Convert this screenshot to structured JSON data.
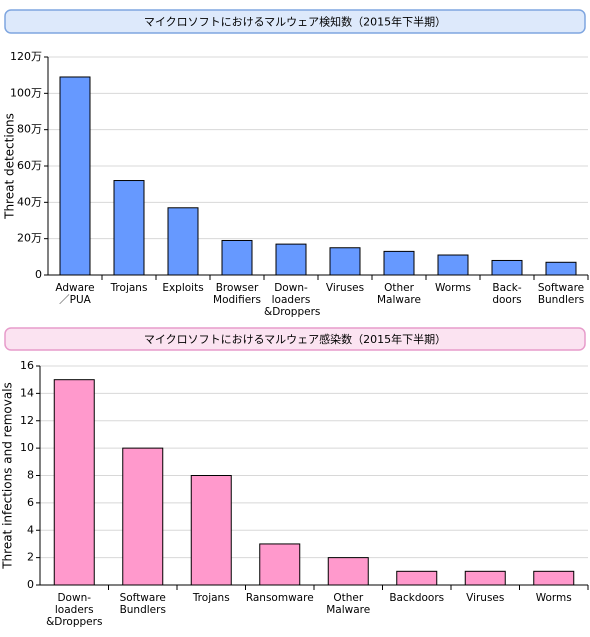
{
  "chart_data": [
    {
      "type": "bar",
      "title": "マイクロソフトにおけるマルウェア検知数（2015年下半期）",
      "y_label": "Threat detections",
      "categories": [
        "Adware\n／PUA",
        "Trojans",
        "Exploits",
        "Browser\nModifiers",
        "Down-\nloaders\n&Droppers",
        "Viruses",
        "Other\nMalware",
        "Worms",
        "Back-\ndoors",
        "Software\nBundlers"
      ],
      "values": [
        1090000,
        520000,
        370000,
        190000,
        170000,
        150000,
        130000,
        110000,
        80000,
        70000
      ],
      "color": "#6699ff",
      "ylim": [
        0,
        1200000
      ],
      "yticks": [
        0,
        {
          "value": 200000,
          "label": "20万"
        },
        {
          "value": 400000,
          "label": "40万"
        },
        {
          "value": 600000,
          "label": "60万"
        },
        {
          "value": 800000,
          "label": "80万"
        },
        {
          "value": 1000000,
          "label": "100万"
        },
        {
          "value": 1200000,
          "label": "120万"
        }
      ],
      "grid": true
    },
    {
      "type": "bar",
      "title": "マイクロソフトにおけるマルウェア感染数（2015年下半期）",
      "y_label": "Threat infections and removals",
      "categories": [
        "Down-\nloaders\n&Droppers",
        "Software\nBundlers",
        "Trojans",
        "Ransomware",
        "Other\nMalware",
        "Backdoors",
        "Viruses",
        "Worms"
      ],
      "values": [
        15,
        10,
        8,
        3,
        2,
        1,
        1,
        1
      ],
      "color": "#ff99cc",
      "ylim": [
        0,
        16
      ],
      "yticks": [
        0,
        2,
        4,
        6,
        8,
        10,
        12,
        14,
        16
      ],
      "grid": true
    }
  ]
}
